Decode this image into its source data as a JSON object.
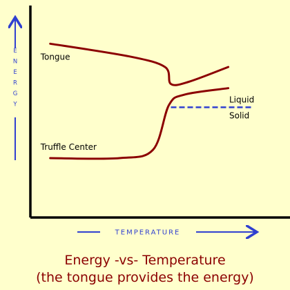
{
  "colors": {
    "background": "#ffffcc",
    "curve": "#8b0000",
    "axis": "#000000",
    "arrow": "#2f3fd0",
    "dashed_line": "#2f3fd0",
    "label_text": "#000000",
    "caption_text": "#8b0000"
  },
  "chart_data": {
    "type": "line",
    "title": "Energy -vs- Temperature",
    "subtitle": "(the tongue provides the energy)",
    "xlabel": "TEMPERATURE",
    "ylabel": "ENERGY",
    "ticks": false,
    "grid": false,
    "series": [
      {
        "name": "Tongue",
        "curve": [
          {
            "x": 0.1,
            "y": 0.82
          },
          {
            "x": 0.5,
            "y": 0.76
          },
          {
            "x": 0.68,
            "y": 0.71
          },
          {
            "x": 0.71,
            "y": 0.63
          },
          {
            "x": 0.8,
            "y": 0.64
          },
          {
            "x": 1.0,
            "y": 0.71
          }
        ]
      },
      {
        "name": "Truffle Center",
        "curve": [
          {
            "x": 0.1,
            "y": 0.28
          },
          {
            "x": 0.45,
            "y": 0.28
          },
          {
            "x": 0.62,
            "y": 0.32
          },
          {
            "x": 0.7,
            "y": 0.53
          },
          {
            "x": 0.78,
            "y": 0.58
          },
          {
            "x": 1.0,
            "y": 0.61
          }
        ]
      }
    ],
    "phase_boundary": {
      "style": "dashed",
      "y": 0.52,
      "x_start": 0.71,
      "x_end": 1.12,
      "label_above": "Liquid",
      "label_below": "Solid"
    }
  }
}
